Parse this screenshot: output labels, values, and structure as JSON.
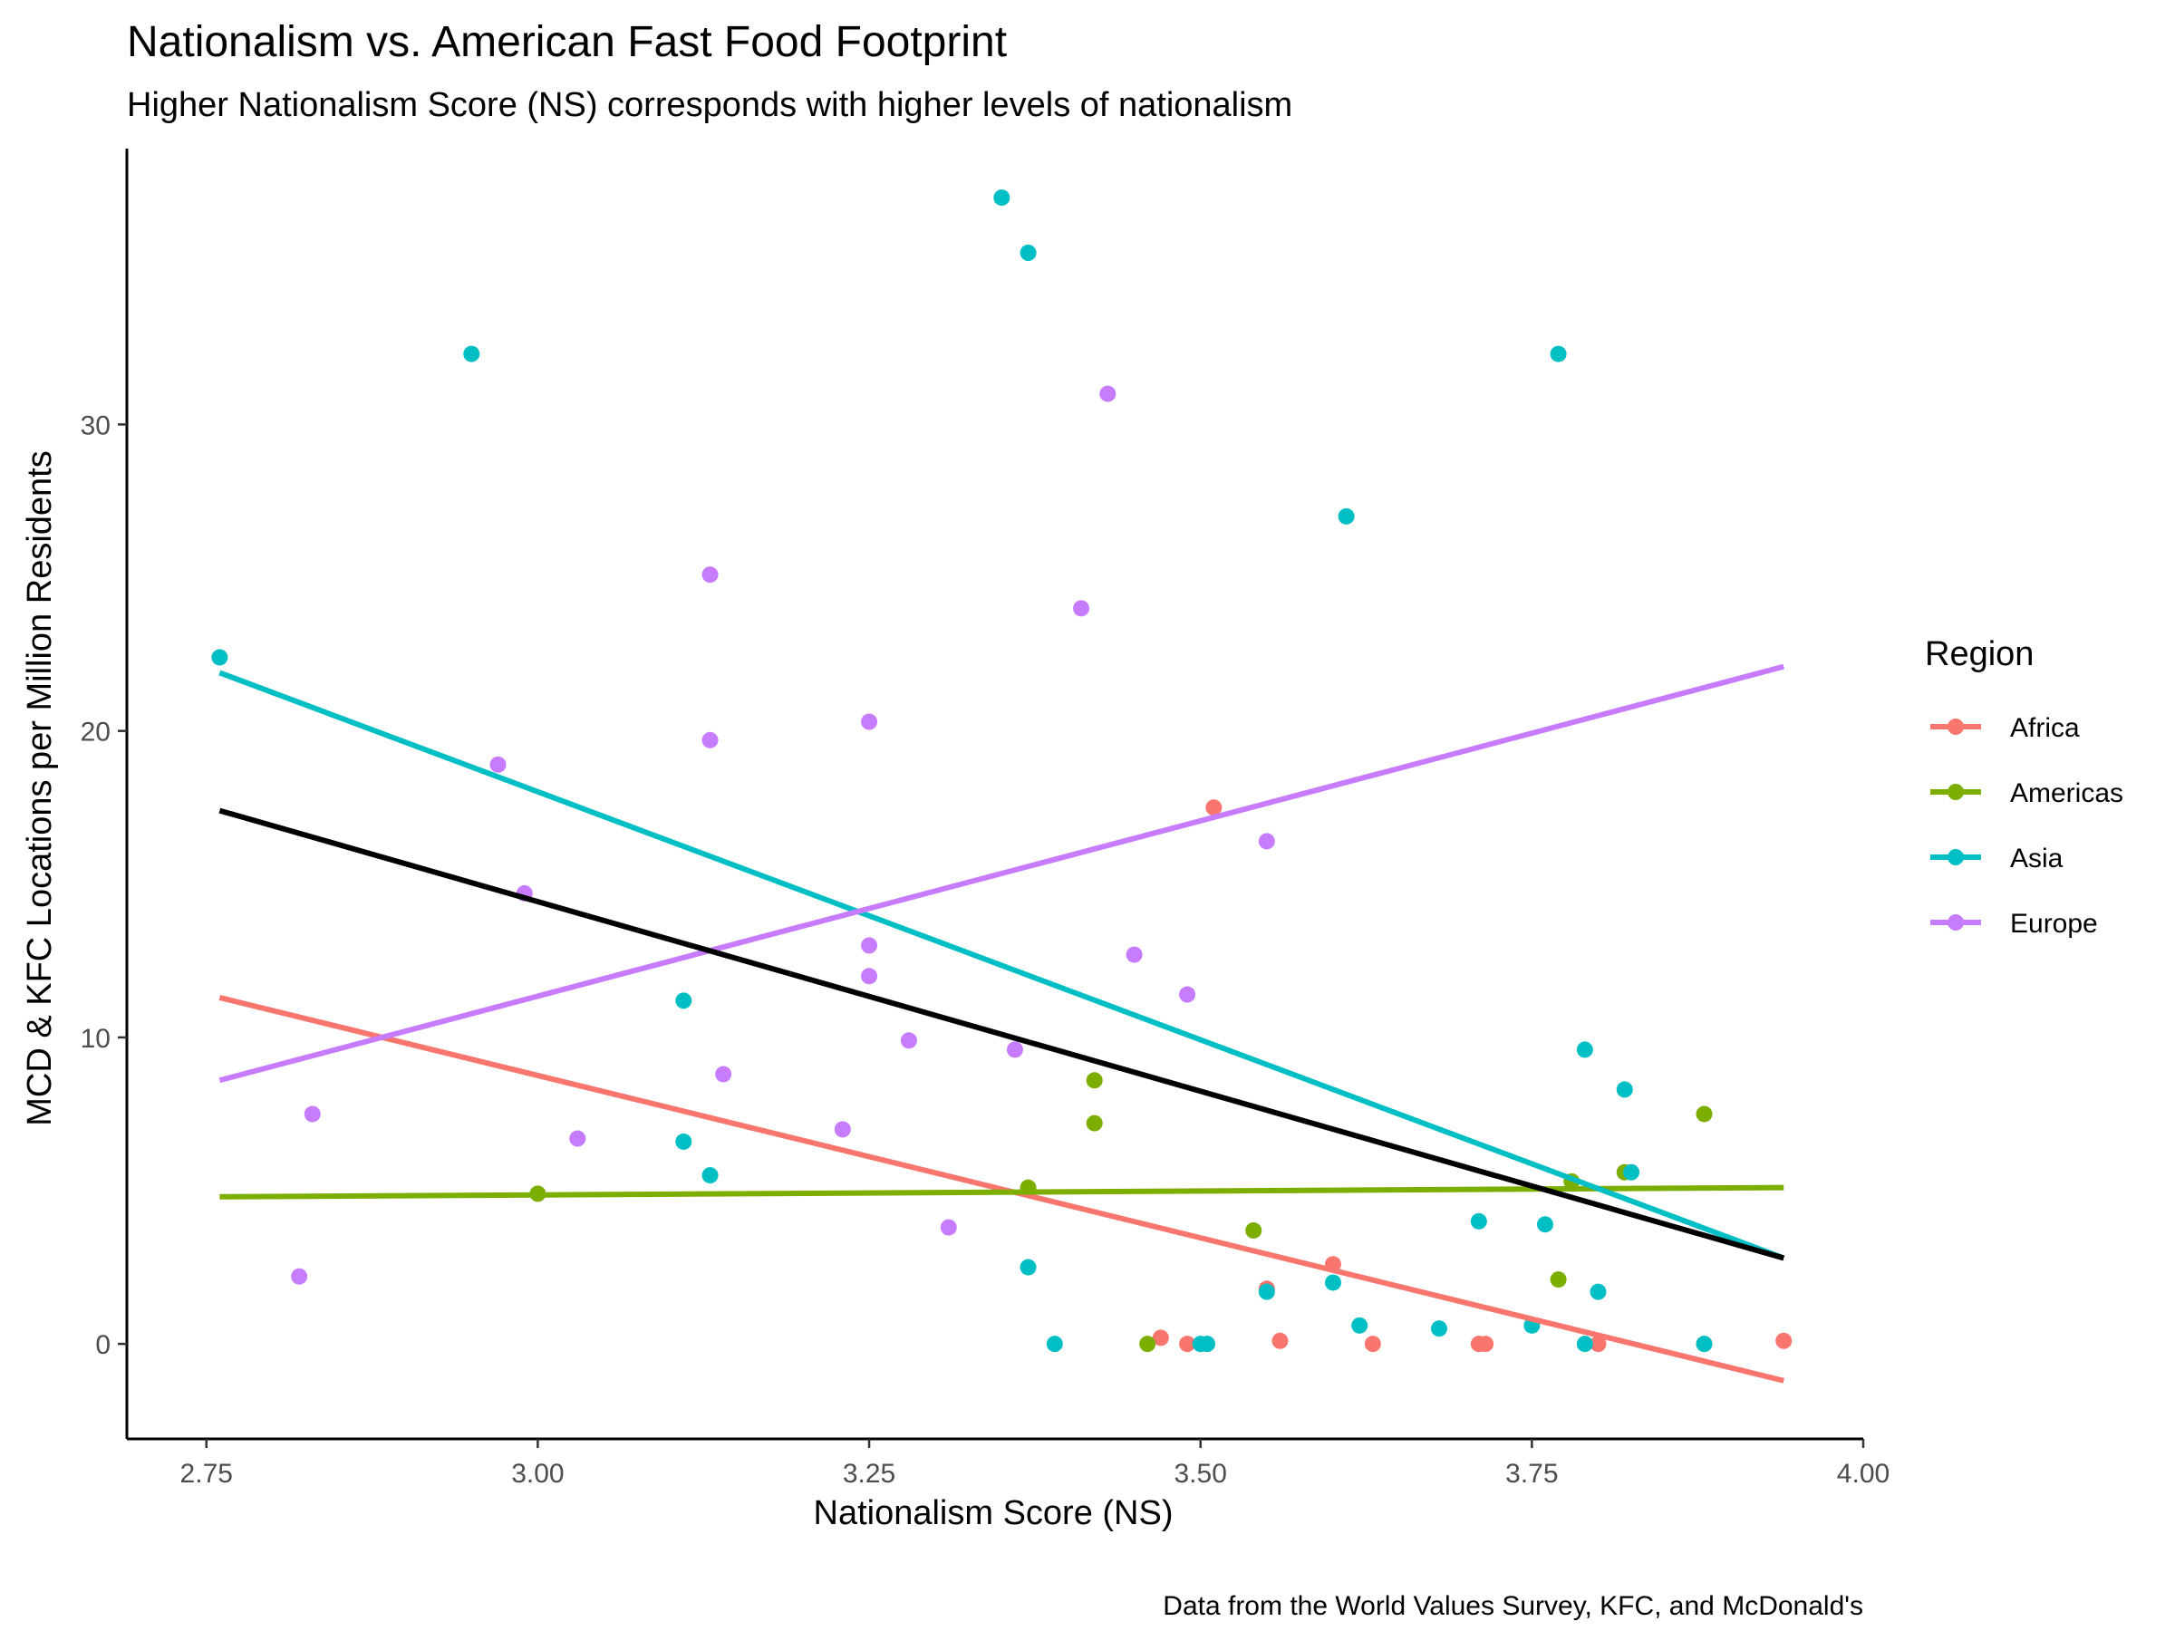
{
  "chart_data": {
    "type": "scatter",
    "title": "Nationalism vs. American Fast Food Footprint",
    "subtitle": "Higher Nationalism Score (NS) corresponds with higher levels of nationalism",
    "xlabel": "Nationalism Score (NS)",
    "ylabel": "MCD & KFC Locations per Million Residents",
    "caption": "Data from the World Values Survey, KFC, and McDonald's",
    "xlim": [
      2.69,
      4.0
    ],
    "ylim": [
      -3.1,
      39.0
    ],
    "x_ticks": [
      2.75,
      3.0,
      3.25,
      3.5,
      3.75,
      4.0
    ],
    "x_tick_labels": [
      "2.75",
      "3.00",
      "3.25",
      "3.50",
      "3.75",
      "4.00"
    ],
    "y_ticks": [
      0,
      10,
      20,
      30
    ],
    "y_tick_labels": [
      "0",
      "10",
      "20",
      "30"
    ],
    "grid": false,
    "legend": {
      "title": "Region",
      "position": "right"
    },
    "series": [
      {
        "name": "Africa",
        "color": "#F8766D",
        "points": [
          [
            3.51,
            17.5
          ],
          [
            3.6,
            2.6
          ],
          [
            3.55,
            1.8
          ],
          [
            3.47,
            0.2
          ],
          [
            3.49,
            0.0
          ],
          [
            3.56,
            0.1
          ],
          [
            3.63,
            0.0
          ],
          [
            3.71,
            0.0
          ],
          [
            3.715,
            0.0
          ],
          [
            3.8,
            0.0
          ],
          [
            3.88,
            0.0
          ],
          [
            3.94,
            0.1
          ]
        ],
        "trend": [
          [
            2.76,
            11.3
          ],
          [
            3.94,
            -1.2
          ]
        ]
      },
      {
        "name": "Americas",
        "color": "#7CAE00",
        "points": [
          [
            3.0,
            4.9
          ],
          [
            3.37,
            5.1
          ],
          [
            3.42,
            8.6
          ],
          [
            3.42,
            7.2
          ],
          [
            3.46,
            0.0
          ],
          [
            3.54,
            3.7
          ],
          [
            3.77,
            2.1
          ],
          [
            3.78,
            5.3
          ],
          [
            3.82,
            5.6
          ],
          [
            3.88,
            7.5
          ]
        ],
        "trend": [
          [
            2.76,
            4.8
          ],
          [
            3.94,
            5.1
          ]
        ]
      },
      {
        "name": "Asia",
        "color": "#00BFC4",
        "points": [
          [
            2.76,
            22.4
          ],
          [
            2.95,
            32.3
          ],
          [
            3.11,
            11.2
          ],
          [
            3.11,
            6.6
          ],
          [
            3.13,
            5.5
          ],
          [
            3.35,
            37.4
          ],
          [
            3.37,
            35.6
          ],
          [
            3.37,
            2.5
          ],
          [
            3.39,
            0.0
          ],
          [
            3.5,
            0.0
          ],
          [
            3.505,
            0.0
          ],
          [
            3.55,
            1.7
          ],
          [
            3.6,
            2.0
          ],
          [
            3.61,
            27.0
          ],
          [
            3.62,
            0.6
          ],
          [
            3.68,
            0.5
          ],
          [
            3.71,
            4.0
          ],
          [
            3.75,
            0.6
          ],
          [
            3.76,
            3.9
          ],
          [
            3.77,
            32.3
          ],
          [
            3.79,
            9.6
          ],
          [
            3.79,
            0.0
          ],
          [
            3.8,
            1.7
          ],
          [
            3.82,
            8.3
          ],
          [
            3.825,
            5.6
          ],
          [
            3.88,
            0.0
          ]
        ],
        "trend": [
          [
            2.76,
            21.9
          ],
          [
            3.94,
            2.8
          ]
        ]
      },
      {
        "name": "Europe",
        "color": "#C77CFF",
        "points": [
          [
            2.82,
            2.2
          ],
          [
            2.83,
            7.5
          ],
          [
            2.97,
            18.9
          ],
          [
            2.99,
            14.7
          ],
          [
            3.03,
            6.7
          ],
          [
            3.13,
            25.1
          ],
          [
            3.13,
            19.7
          ],
          [
            3.14,
            8.8
          ],
          [
            3.23,
            7.0
          ],
          [
            3.25,
            12.0
          ],
          [
            3.25,
            13.0
          ],
          [
            3.25,
            20.3
          ],
          [
            3.28,
            9.9
          ],
          [
            3.31,
            3.8
          ],
          [
            3.36,
            9.6
          ],
          [
            3.41,
            24.0
          ],
          [
            3.43,
            31.0
          ],
          [
            3.45,
            12.7
          ],
          [
            3.49,
            11.4
          ],
          [
            3.55,
            16.4
          ]
        ],
        "trend": [
          [
            2.76,
            8.6
          ],
          [
            3.94,
            22.1
          ]
        ]
      }
    ],
    "overall_trend": {
      "color": "#000000",
      "line": [
        [
          2.76,
          17.4
        ],
        [
          3.94,
          2.8
        ]
      ]
    }
  }
}
